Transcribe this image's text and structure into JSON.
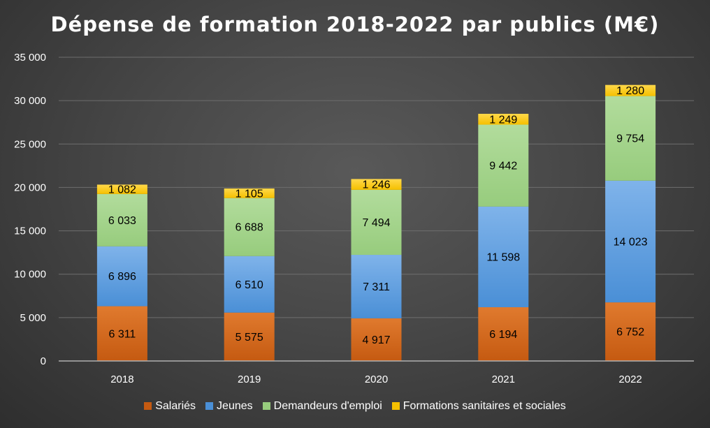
{
  "chart_data": {
    "type": "bar",
    "stacked": true,
    "title": "Dépense de formation 2018-2022 par publics (M€)",
    "xlabel": "",
    "ylabel": "",
    "categories": [
      "2018",
      "2019",
      "2020",
      "2021",
      "2022"
    ],
    "ylim": [
      0,
      35000
    ],
    "yticks": [
      0,
      5000,
      10000,
      15000,
      20000,
      25000,
      30000,
      35000
    ],
    "ytick_labels": [
      "0",
      "5 000",
      "10 000",
      "15 000",
      "20 000",
      "25 000",
      "30 000",
      "35 000"
    ],
    "grid": true,
    "legend_position": "bottom",
    "series": [
      {
        "name": "Salariés",
        "values": [
          6311,
          5575,
          4917,
          6194,
          6752
        ],
        "labels": [
          "6 311",
          "5 575",
          "4 917",
          "6 194",
          "6 752"
        ],
        "color": "#c55a11",
        "color_light": "#e07a2e"
      },
      {
        "name": "Jeunes",
        "values": [
          6896,
          6510,
          7311,
          11598,
          14023
        ],
        "labels": [
          "6 896",
          "6 510",
          "7 311",
          "11 598",
          "14 023"
        ],
        "color": "#4a8fd6",
        "color_light": "#7fb3ea"
      },
      {
        "name": "Demandeurs d'emploi",
        "values": [
          6033,
          6688,
          7494,
          9442,
          9754
        ],
        "labels": [
          "6 033",
          "6 688",
          "7 494",
          "9 442",
          "9 754"
        ],
        "color": "#97cc7d",
        "color_light": "#b2dc9c"
      },
      {
        "name": "Formations sanitaires et sociales",
        "values": [
          1082,
          1105,
          1246,
          1249,
          1280
        ],
        "labels": [
          "1 082",
          "1 105",
          "1 246",
          "1 249",
          "1 280"
        ],
        "color": "#f5c000",
        "color_light": "#ffd84a"
      }
    ]
  }
}
